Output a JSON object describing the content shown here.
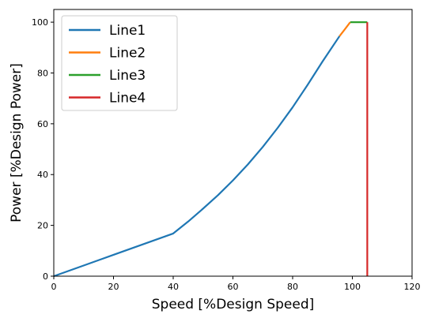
{
  "chart_data": {
    "type": "line",
    "title": "",
    "xlabel": "Speed [%Design Speed]",
    "ylabel": "Power [%Design Power]",
    "xlim": [
      0,
      120
    ],
    "ylim": [
      0,
      105
    ],
    "xticks": [
      0,
      20,
      40,
      60,
      80,
      100,
      120
    ],
    "yticks": [
      0,
      20,
      40,
      60,
      80,
      100
    ],
    "grid": false,
    "legend_position": "top-left",
    "series": [
      {
        "name": "Line1",
        "color": "#1f77b4",
        "x": [
          0,
          10,
          20,
          30,
          40,
          45,
          50,
          55,
          60,
          65,
          70,
          75,
          80,
          85,
          90,
          95.7
        ],
        "y": [
          0,
          4.2,
          8.4,
          12.6,
          16.8,
          21.5,
          26.6,
          31.9,
          37.7,
          44.0,
          50.9,
          58.4,
          66.5,
          75.3,
          84.5,
          94.5
        ]
      },
      {
        "name": "Line2",
        "color": "#ff7f0e",
        "x": [
          95.7,
          97.5,
          99.3
        ],
        "y": [
          94.5,
          97.2,
          100
        ]
      },
      {
        "name": "Line3",
        "color": "#2ca02c",
        "x": [
          99.3,
          105
        ],
        "y": [
          100,
          100
        ]
      },
      {
        "name": "Line4",
        "color": "#d62728",
        "x": [
          105,
          105
        ],
        "y": [
          100,
          0
        ]
      }
    ]
  }
}
